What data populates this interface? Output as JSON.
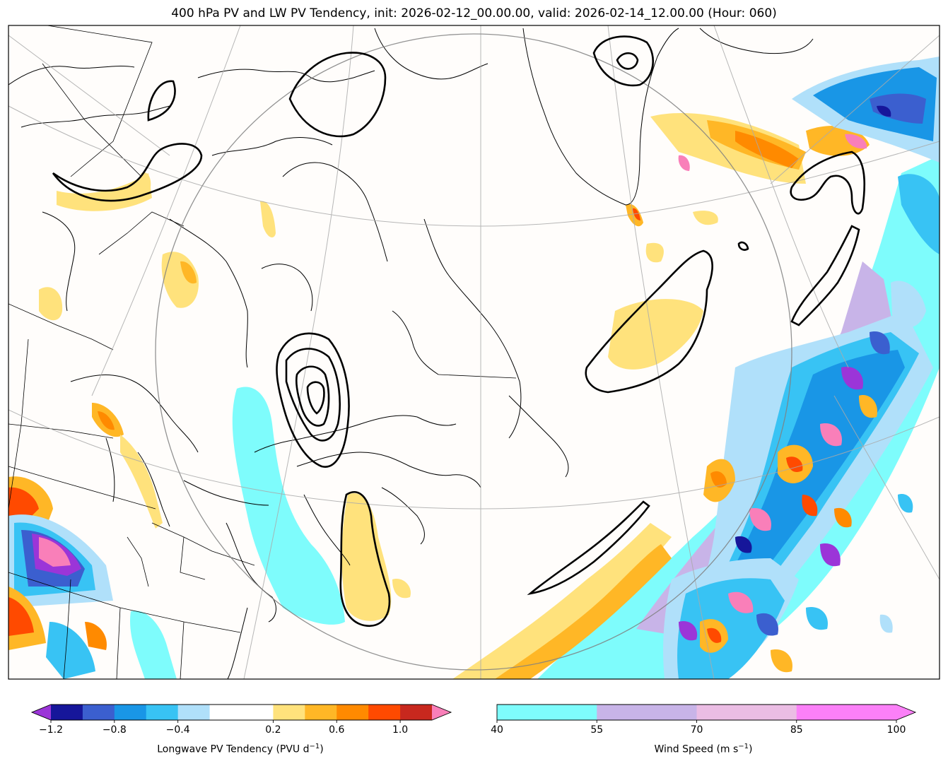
{
  "title": "400 hPa PV and LW PV Tendency, init: 2026-02-12_00.00.00, valid: 2026-02-14_12.00.00 (Hour: 060)",
  "chart_data": {
    "type": "map",
    "overlays": [
      {
        "name": "400 hPa potential vorticity",
        "style": "black contours"
      },
      {
        "name": "Longwave PV Tendency",
        "style": "filled contours"
      },
      {
        "name": "Wind Speed",
        "style": "filled contours"
      }
    ],
    "colorbars": [
      {
        "label": "Longwave PV Tendency (PVU d",
        "label_sup": "−1",
        "label_close": ")",
        "levels": [
          -1.2,
          -1.0,
          -0.8,
          -0.6,
          -0.4,
          -0.2,
          0.2,
          0.4,
          0.6,
          0.8,
          1.0,
          1.2
        ],
        "colors": [
          "#16169a",
          "#3b5fcf",
          "#1996e6",
          "#38c3f4",
          "#b0e0fa",
          "#ffffff",
          "#ffe27c",
          "#ffb726",
          "#ff8a00",
          "#ff4a00",
          "#c8281e"
        ],
        "extend_low_color": "#9b35d8",
        "extend_high_color": "#f97fb9",
        "tick_values": [
          -1.2,
          -0.8,
          -0.4,
          0.2,
          0.6,
          1.0
        ],
        "tick_labels": [
          "−1.2",
          "−0.8",
          "−0.4",
          "0.2",
          "0.6",
          "1.0"
        ]
      },
      {
        "label": "Wind Speed (m s",
        "label_sup": "−1",
        "label_close": ")",
        "levels": [
          40,
          55,
          70,
          85,
          100
        ],
        "colors": [
          "#7efcfc",
          "#c8b4e8",
          "#ebbde4",
          "#fb80f8"
        ],
        "extend_high_color": "#fb80f8",
        "tick_values": [
          40,
          55,
          70,
          85,
          100
        ],
        "tick_labels": [
          "40",
          "55",
          "70",
          "85",
          "100"
        ]
      }
    ]
  }
}
